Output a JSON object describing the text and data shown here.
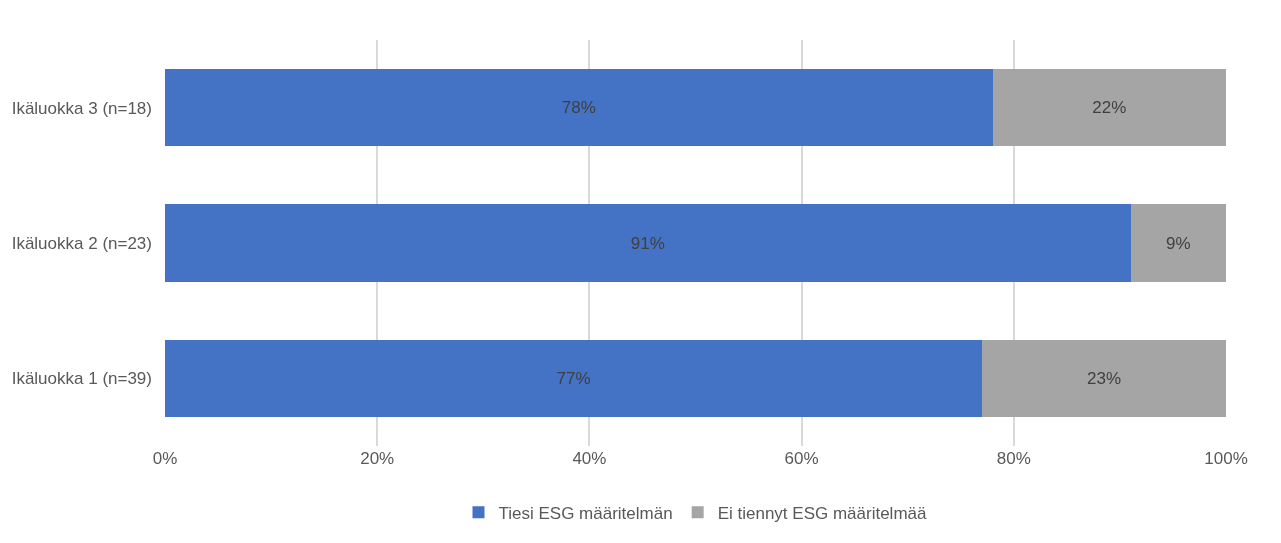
{
  "chart_data": {
    "type": "bar",
    "orientation": "horizontal",
    "stacked": true,
    "categories": [
      "Ikäluokka 3 (n=18)",
      "Ikäluokka 2 (n=23)",
      "Ikäluokka 1 (n=39)"
    ],
    "series": [
      {
        "name": "Tiesi ESG määritelmän",
        "color": "#4472c4",
        "values": [
          78,
          91,
          77
        ],
        "value_labels": [
          "78%",
          "91%",
          "77%"
        ]
      },
      {
        "name": "Ei tiennyt ESG määritelmää",
        "color": "#a5a5a5",
        "values": [
          22,
          9,
          23
        ],
        "value_labels": [
          "22%",
          "9%",
          "23%"
        ]
      }
    ],
    "xlim": [
      0,
      100
    ],
    "xticks": [
      {
        "value": 0,
        "label": "0%"
      },
      {
        "value": 20,
        "label": "20%"
      },
      {
        "value": 40,
        "label": "40%"
      },
      {
        "value": 60,
        "label": "60%"
      },
      {
        "value": 80,
        "label": "80%"
      },
      {
        "value": 100,
        "label": "100%"
      }
    ],
    "grid": "x",
    "legend": "bottom"
  }
}
